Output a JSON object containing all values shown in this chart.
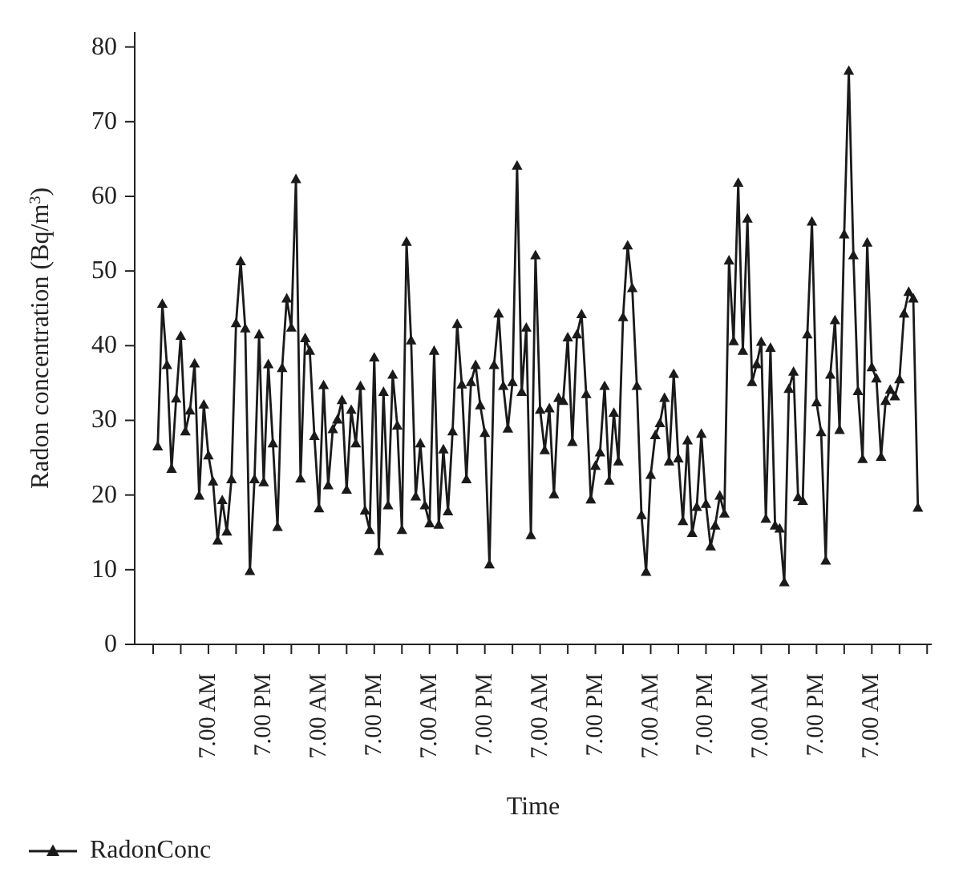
{
  "chart_data": {
    "type": "line",
    "xlabel": "Time",
    "ylabel": "Radon concentration (Bq/m$^{3}$)",
    "categories": [
      null,
      null,
      null,
      null,
      null,
      null,
      null,
      null,
      null,
      null,
      null,
      "7.00 AM",
      null,
      null,
      null,
      null,
      null,
      null,
      null,
      null,
      null,
      null,
      null,
      "7.00 PM",
      null,
      null,
      null,
      null,
      null,
      null,
      null,
      null,
      null,
      null,
      null,
      "7.00 AM",
      null,
      null,
      null,
      null,
      null,
      null,
      null,
      null,
      null,
      null,
      null,
      "7.00 PM",
      null,
      null,
      null,
      null,
      null,
      null,
      null,
      null,
      null,
      null,
      null,
      "7.00 AM",
      null,
      null,
      null,
      null,
      null,
      null,
      null,
      null,
      null,
      null,
      null,
      "7.00 PM",
      null,
      null,
      null,
      null,
      null,
      null,
      null,
      null,
      null,
      null,
      null,
      "7.00 AM",
      null,
      null,
      null,
      null,
      null,
      null,
      null,
      null,
      null,
      null,
      null,
      "7.00 PM",
      null,
      null,
      null,
      null,
      null,
      null,
      null,
      null,
      null,
      null,
      null,
      "7.00 AM",
      null,
      null,
      null,
      null,
      null,
      null,
      null,
      null,
      null,
      null,
      null,
      "7.00 PM",
      null,
      null,
      null,
      null,
      null,
      null,
      null,
      null,
      null,
      null,
      null,
      "7.00 AM",
      null,
      null,
      null,
      null,
      null,
      null,
      null,
      null,
      null,
      null,
      null,
      "7.00 PM",
      null,
      null,
      null,
      null,
      null,
      null,
      null,
      null,
      null,
      null,
      null,
      "7.00 AM",
      null,
      null,
      null,
      null,
      null,
      null,
      null,
      null,
      null,
      null
    ],
    "series": [
      {
        "name": "RadonConc",
        "color": "#1a1a1a",
        "values": [
          26.5,
          45.6,
          37.4,
          23.5,
          32.9,
          41.3,
          28.5,
          31.3,
          37.6,
          19.9,
          32.1,
          25.3,
          21.8,
          13.9,
          19.3,
          15.1,
          22.1,
          43.0,
          51.3,
          42.3,
          9.8,
          22.1,
          41.5,
          21.7,
          37.5,
          26.9,
          15.7,
          37.0,
          46.3,
          42.4,
          62.3,
          22.2,
          41.0,
          39.3,
          27.9,
          18.2,
          34.7,
          21.3,
          28.8,
          30.1,
          32.7,
          20.7,
          31.4,
          26.9,
          34.6,
          17.9,
          15.3,
          38.4,
          12.5,
          33.8,
          18.6,
          36.1,
          29.3,
          15.3,
          53.9,
          40.7,
          19.8,
          26.9,
          18.6,
          16.2,
          39.3,
          16.0,
          26.1,
          17.8,
          28.5,
          42.9,
          34.8,
          22.1,
          35.1,
          37.4,
          32.0,
          28.3,
          10.7,
          37.4,
          44.3,
          34.6,
          28.9,
          35.1,
          64.1,
          33.8,
          42.4,
          14.6,
          52.1,
          31.4,
          26.0,
          31.6,
          20.1,
          33.0,
          32.6,
          41.1,
          27.1,
          41.5,
          44.2,
          33.5,
          19.4,
          23.9,
          25.7,
          34.6,
          21.9,
          31.0,
          24.5,
          43.8,
          53.4,
          47.7,
          34.6,
          17.3,
          9.7,
          22.7,
          28.0,
          29.6,
          33.0,
          24.5,
          36.2,
          24.9,
          16.5,
          27.3,
          14.9,
          18.4,
          28.2,
          18.8,
          13.1,
          15.9,
          19.9,
          17.5,
          51.4,
          40.6,
          61.8,
          39.3,
          57.0,
          35.1,
          37.5,
          40.5,
          16.8,
          39.7,
          15.9,
          15.5,
          8.3,
          34.2,
          36.5,
          19.7,
          19.2,
          41.5,
          56.6,
          32.4,
          28.4,
          11.2,
          36.1,
          43.4,
          28.7,
          54.9,
          76.8,
          52.1,
          33.9,
          24.8,
          53.8,
          37.1,
          35.6,
          25.1,
          32.6,
          34.1,
          33.2,
          35.5,
          44.3,
          47.2,
          46.3,
          18.3
        ]
      }
    ],
    "ylim": [
      0,
      82
    ],
    "yticks": [
      0,
      10,
      20,
      30,
      40,
      50,
      60,
      70,
      80
    ],
    "marker": "triangle",
    "line_style": "solid",
    "legend": "bottom left"
  }
}
